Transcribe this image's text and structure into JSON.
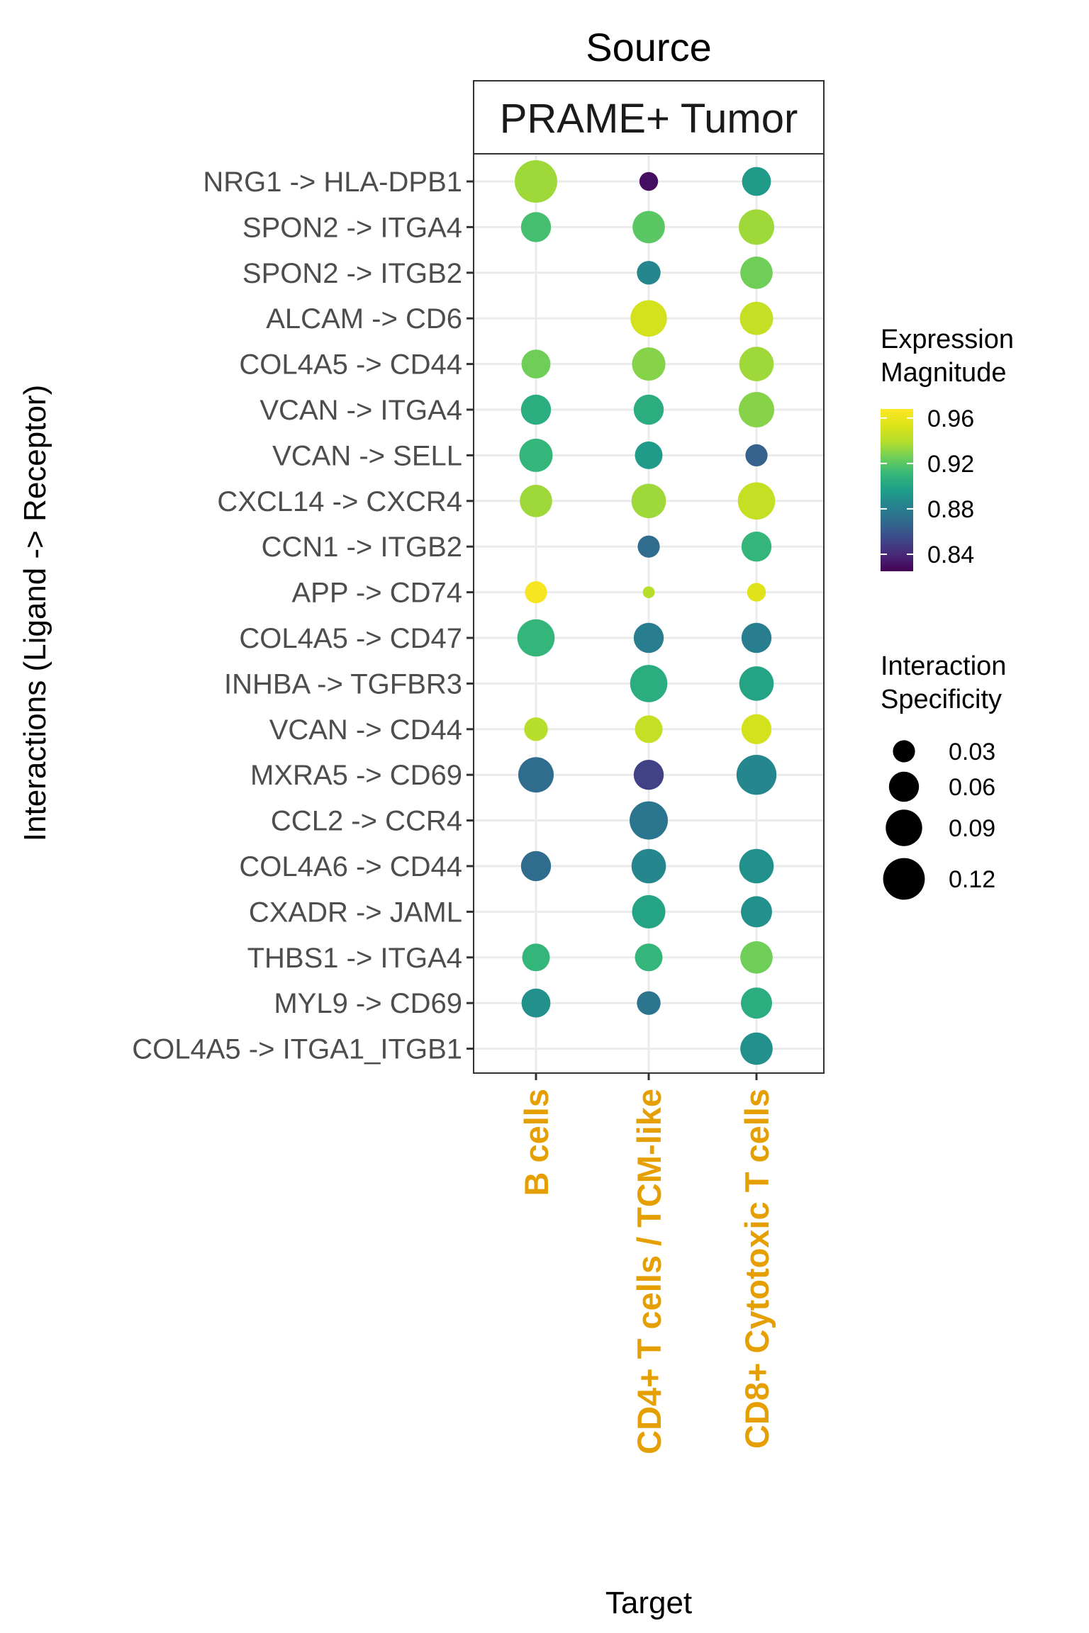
{
  "chart_data": {
    "type": "scatter",
    "subtype": "dot-plot",
    "source_title": "Source",
    "facet_label": "PRAME+ Tumor",
    "xlabel": "Target",
    "ylabel": "Interactions (Ligand -> Receptor)",
    "targets": [
      "B cells",
      "CD4+ T cells / TCM-like",
      "CD8+ Cytotoxic T cells"
    ],
    "interactions": [
      "NRG1 -> HLA-DPB1",
      "SPON2 -> ITGA4",
      "SPON2 -> ITGB2",
      "ALCAM -> CD6",
      "COL4A5 -> CD44",
      "VCAN -> ITGA4",
      "VCAN -> SELL",
      "CXCL14 -> CXCR4",
      "CCN1 -> ITGB2",
      "APP -> CD74",
      "COL4A5 -> CD47",
      "INHBA -> TGFBR3",
      "VCAN -> CD44",
      "MXRA5 -> CD69",
      "CCL2 -> CCR4",
      "COL4A6 -> CD44",
      "CXADR -> JAML",
      "THBS1 -> ITGA4",
      "MYL9 -> CD69",
      "COL4A5 -> ITGA1_ITGB1"
    ],
    "points": [
      {
        "interaction": "NRG1 -> HLA-DPB1",
        "target": "B cells",
        "magnitude": 0.935,
        "specificity": 0.125
      },
      {
        "interaction": "NRG1 -> HLA-DPB1",
        "target": "CD4+ T cells / TCM-like",
        "magnitude": 0.83,
        "specificity": 0.02
      },
      {
        "interaction": "NRG1 -> HLA-DPB1",
        "target": "CD8+ Cytotoxic T cells",
        "magnitude": 0.895,
        "specificity": 0.055
      },
      {
        "interaction": "SPON2 -> ITGA4",
        "target": "B cells",
        "magnitude": 0.915,
        "specificity": 0.06
      },
      {
        "interaction": "SPON2 -> ITGA4",
        "target": "CD4+ T cells / TCM-like",
        "magnitude": 0.92,
        "specificity": 0.07
      },
      {
        "interaction": "SPON2 -> ITGA4",
        "target": "CD8+ Cytotoxic T cells",
        "magnitude": 0.935,
        "specificity": 0.085
      },
      {
        "interaction": "SPON2 -> ITGB2",
        "target": "CD4+ T cells / TCM-like",
        "magnitude": 0.885,
        "specificity": 0.035
      },
      {
        "interaction": "SPON2 -> ITGB2",
        "target": "CD8+ Cytotoxic T cells",
        "magnitude": 0.925,
        "specificity": 0.07
      },
      {
        "interaction": "ALCAM -> CD6",
        "target": "CD4+ T cells / TCM-like",
        "magnitude": 0.95,
        "specificity": 0.09
      },
      {
        "interaction": "ALCAM -> CD6",
        "target": "CD8+ Cytotoxic T cells",
        "magnitude": 0.945,
        "specificity": 0.075
      },
      {
        "interaction": "COL4A5 -> CD44",
        "target": "B cells",
        "magnitude": 0.925,
        "specificity": 0.055
      },
      {
        "interaction": "COL4A5 -> CD44",
        "target": "CD4+ T cells / TCM-like",
        "magnitude": 0.93,
        "specificity": 0.075
      },
      {
        "interaction": "COL4A5 -> CD44",
        "target": "CD8+ Cytotoxic T cells",
        "magnitude": 0.935,
        "specificity": 0.08
      },
      {
        "interaction": "VCAN -> ITGA4",
        "target": "B cells",
        "magnitude": 0.905,
        "specificity": 0.06
      },
      {
        "interaction": "VCAN -> ITGA4",
        "target": "CD4+ T cells / TCM-like",
        "magnitude": 0.905,
        "specificity": 0.06
      },
      {
        "interaction": "VCAN -> ITGA4",
        "target": "CD8+ Cytotoxic T cells",
        "magnitude": 0.93,
        "specificity": 0.085
      },
      {
        "interaction": "VCAN -> SELL",
        "target": "B cells",
        "magnitude": 0.91,
        "specificity": 0.075
      },
      {
        "interaction": "VCAN -> SELL",
        "target": "CD4+ T cells / TCM-like",
        "magnitude": 0.895,
        "specificity": 0.05
      },
      {
        "interaction": "VCAN -> SELL",
        "target": "CD8+ Cytotoxic T cells",
        "magnitude": 0.865,
        "specificity": 0.03
      },
      {
        "interaction": "CXCL14 -> CXCR4",
        "target": "B cells",
        "magnitude": 0.935,
        "specificity": 0.07
      },
      {
        "interaction": "CXCL14 -> CXCR4",
        "target": "CD4+ T cells / TCM-like",
        "magnitude": 0.935,
        "specificity": 0.08
      },
      {
        "interaction": "CXCL14 -> CXCR4",
        "target": "CD8+ Cytotoxic T cells",
        "magnitude": 0.945,
        "specificity": 0.095
      },
      {
        "interaction": "CCN1 -> ITGB2",
        "target": "CD4+ T cells / TCM-like",
        "magnitude": 0.87,
        "specificity": 0.03
      },
      {
        "interaction": "CCN1 -> ITGB2",
        "target": "CD8+ Cytotoxic T cells",
        "magnitude": 0.91,
        "specificity": 0.06
      },
      {
        "interaction": "APP -> CD74",
        "target": "B cells",
        "magnitude": 0.965,
        "specificity": 0.03
      },
      {
        "interaction": "APP -> CD74",
        "target": "CD4+ T cells / TCM-like",
        "magnitude": 0.94,
        "specificity": 0.005
      },
      {
        "interaction": "APP -> CD74",
        "target": "CD8+ Cytotoxic T cells",
        "magnitude": 0.955,
        "specificity": 0.02
      },
      {
        "interaction": "COL4A5 -> CD47",
        "target": "B cells",
        "magnitude": 0.91,
        "specificity": 0.095
      },
      {
        "interaction": "COL4A5 -> CD47",
        "target": "CD4+ T cells / TCM-like",
        "magnitude": 0.88,
        "specificity": 0.06
      },
      {
        "interaction": "COL4A5 -> CD47",
        "target": "CD8+ Cytotoxic T cells",
        "magnitude": 0.88,
        "specificity": 0.06
      },
      {
        "interaction": "INHBA -> TGFBR3",
        "target": "CD4+ T cells / TCM-like",
        "magnitude": 0.905,
        "specificity": 0.095
      },
      {
        "interaction": "INHBA -> TGFBR3",
        "target": "CD8+ Cytotoxic T cells",
        "magnitude": 0.9,
        "specificity": 0.08
      },
      {
        "interaction": "VCAN -> CD44",
        "target": "B cells",
        "magnitude": 0.94,
        "specificity": 0.035
      },
      {
        "interaction": "VCAN -> CD44",
        "target": "CD4+ T cells / TCM-like",
        "magnitude": 0.945,
        "specificity": 0.05
      },
      {
        "interaction": "VCAN -> CD44",
        "target": "CD8+ Cytotoxic T cells",
        "magnitude": 0.95,
        "specificity": 0.06
      },
      {
        "interaction": "MXRA5 -> CD69",
        "target": "B cells",
        "magnitude": 0.87,
        "specificity": 0.085
      },
      {
        "interaction": "MXRA5 -> CD69",
        "target": "CD4+ T cells / TCM-like",
        "magnitude": 0.85,
        "specificity": 0.06
      },
      {
        "interaction": "MXRA5 -> CD69",
        "target": "CD8+ Cytotoxic T cells",
        "magnitude": 0.885,
        "specificity": 0.11
      },
      {
        "interaction": "CCL2 -> CCR4",
        "target": "CD4+ T cells / TCM-like",
        "magnitude": 0.875,
        "specificity": 0.1
      },
      {
        "interaction": "COL4A6 -> CD44",
        "target": "B cells",
        "magnitude": 0.87,
        "specificity": 0.06
      },
      {
        "interaction": "COL4A6 -> CD44",
        "target": "CD4+ T cells / TCM-like",
        "magnitude": 0.885,
        "specificity": 0.08
      },
      {
        "interaction": "COL4A6 -> CD44",
        "target": "CD8+ Cytotoxic T cells",
        "magnitude": 0.89,
        "specificity": 0.08
      },
      {
        "interaction": "CXADR -> JAML",
        "target": "CD4+ T cells / TCM-like",
        "magnitude": 0.9,
        "specificity": 0.075
      },
      {
        "interaction": "CXADR -> JAML",
        "target": "CD8+ Cytotoxic T cells",
        "magnitude": 0.89,
        "specificity": 0.065
      },
      {
        "interaction": "THBS1 -> ITGA4",
        "target": "B cells",
        "magnitude": 0.91,
        "specificity": 0.05
      },
      {
        "interaction": "THBS1 -> ITGA4",
        "target": "CD4+ T cells / TCM-like",
        "magnitude": 0.91,
        "specificity": 0.05
      },
      {
        "interaction": "THBS1 -> ITGA4",
        "target": "CD8+ Cytotoxic T cells",
        "magnitude": 0.925,
        "specificity": 0.07
      },
      {
        "interaction": "MYL9 -> CD69",
        "target": "B cells",
        "magnitude": 0.89,
        "specificity": 0.055
      },
      {
        "interaction": "MYL9 -> CD69",
        "target": "CD4+ T cells / TCM-like",
        "magnitude": 0.875,
        "specificity": 0.035
      },
      {
        "interaction": "MYL9 -> CD69",
        "target": "CD8+ Cytotoxic T cells",
        "magnitude": 0.905,
        "specificity": 0.065
      },
      {
        "interaction": "COL4A5 -> ITGA1_ITGB1",
        "target": "CD8+ Cytotoxic T cells",
        "magnitude": 0.89,
        "specificity": 0.07
      }
    ],
    "color_legend": {
      "title": [
        "Expression",
        "Magnitude"
      ],
      "breaks": [
        0.84,
        0.88,
        0.92,
        0.96
      ],
      "labels": [
        "0.84",
        "0.88",
        "0.92",
        "0.96"
      ],
      "range": [
        0.825,
        0.968
      ],
      "colormap": "viridis"
    },
    "size_legend": {
      "title": [
        "Interaction",
        "Specificity"
      ],
      "breaks": [
        0.03,
        0.06,
        0.09,
        0.12
      ],
      "labels": [
        "0.03",
        "0.06",
        "0.09",
        "0.12"
      ],
      "range": [
        0.0,
        0.125
      ]
    },
    "grid": true,
    "legend_position": "right",
    "colors": {
      "target_label": "#e69f00",
      "tick_label": "#4d4d4d",
      "grid": "#ebebeb",
      "panel_border": "#333333"
    }
  }
}
